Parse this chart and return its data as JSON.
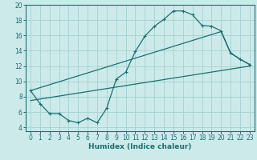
{
  "xlabel": "Humidex (Indice chaleur)",
  "bg_color": "#cceaea",
  "grid_color": "#aad4d4",
  "line_color": "#1a7070",
  "xlim": [
    -0.5,
    23.5
  ],
  "ylim": [
    3.5,
    20.0
  ],
  "xticks": [
    0,
    1,
    2,
    3,
    4,
    5,
    6,
    7,
    8,
    9,
    10,
    11,
    12,
    13,
    14,
    15,
    16,
    17,
    18,
    19,
    20,
    21,
    22,
    23
  ],
  "yticks": [
    4,
    6,
    8,
    10,
    12,
    14,
    16,
    18,
    20
  ],
  "line1_x": [
    0,
    1,
    2,
    3,
    4,
    5,
    6,
    7,
    8,
    9,
    10,
    11,
    12,
    13,
    14,
    15,
    16,
    17,
    18,
    19,
    20,
    21,
    22,
    23
  ],
  "line1_y": [
    8.8,
    7.1,
    5.8,
    5.8,
    4.9,
    4.6,
    5.2,
    4.6,
    6.5,
    10.3,
    11.2,
    13.9,
    15.9,
    17.2,
    18.1,
    19.2,
    19.2,
    18.7,
    17.3,
    17.2,
    16.6,
    13.7,
    12.9,
    12.2
  ],
  "line2_x": [
    0,
    20,
    21,
    22,
    23
  ],
  "line2_y": [
    8.8,
    16.5,
    13.7,
    12.9,
    12.2
  ],
  "line3_x": [
    0,
    23
  ],
  "line3_y": [
    7.5,
    12.0
  ],
  "tick_fontsize": 5.5,
  "xlabel_fontsize": 6.5
}
